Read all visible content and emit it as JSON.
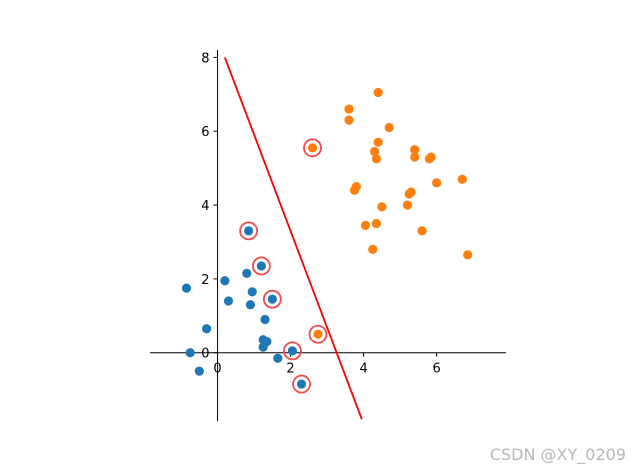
{
  "chart_data": {
    "type": "scatter",
    "title": "",
    "xlabel": "",
    "ylabel": "",
    "xlim": [
      -1.85,
      7.9
    ],
    "ylim": [
      -1.85,
      8.2
    ],
    "x_ticks": [
      0,
      2,
      4,
      6
    ],
    "y_ticks": [
      0,
      2,
      4,
      6,
      8
    ],
    "x_tick_labels": [
      "0",
      "2",
      "4",
      "6"
    ],
    "y_tick_labels": [
      "0",
      "2",
      "4",
      "6",
      "8"
    ],
    "grid": false,
    "spines": "centered at origin",
    "series": [
      {
        "color": "#1f77b4",
        "points": [
          [
            -0.85,
            1.75
          ],
          [
            0.2,
            1.95
          ],
          [
            0.3,
            1.4
          ],
          [
            0.8,
            2.15
          ],
          [
            0.85,
            3.3
          ],
          [
            0.95,
            1.65
          ],
          [
            0.9,
            1.3
          ],
          [
            1.2,
            2.35
          ],
          [
            1.5,
            1.45
          ],
          [
            1.3,
            0.9
          ],
          [
            1.25,
            0.35
          ],
          [
            1.35,
            0.3
          ],
          [
            1.25,
            0.15
          ],
          [
            1.65,
            -0.15
          ],
          [
            2.05,
            0.05
          ],
          [
            2.3,
            -0.85
          ],
          [
            -0.3,
            0.65
          ],
          [
            -0.75,
            0.0
          ],
          [
            -0.5,
            -0.5
          ]
        ]
      },
      {
        "color": "#ff7f0e",
        "points": [
          [
            2.6,
            5.55
          ],
          [
            3.6,
            6.6
          ],
          [
            3.6,
            6.3
          ],
          [
            4.4,
            7.05
          ],
          [
            4.7,
            6.1
          ],
          [
            4.4,
            5.7
          ],
          [
            4.3,
            5.45
          ],
          [
            4.35,
            5.25
          ],
          [
            3.8,
            4.5
          ],
          [
            3.75,
            4.4
          ],
          [
            4.05,
            3.45
          ],
          [
            4.35,
            3.5
          ],
          [
            4.5,
            3.95
          ],
          [
            4.25,
            2.8
          ],
          [
            5.4,
            5.5
          ],
          [
            5.4,
            5.3
          ],
          [
            5.8,
            5.25
          ],
          [
            5.85,
            5.3
          ],
          [
            5.25,
            4.3
          ],
          [
            5.3,
            4.35
          ],
          [
            5.2,
            4.0
          ],
          [
            5.6,
            3.3
          ],
          [
            6.0,
            4.6
          ],
          [
            6.7,
            4.7
          ],
          [
            6.85,
            2.65
          ],
          [
            2.75,
            0.5
          ]
        ]
      }
    ],
    "highlighted_points": [
      [
        2.6,
        5.55
      ],
      [
        0.85,
        3.3
      ],
      [
        1.2,
        2.35
      ],
      [
        1.5,
        1.45
      ],
      [
        2.75,
        0.5
      ],
      [
        2.05,
        0.05
      ],
      [
        2.3,
        -0.85
      ]
    ],
    "decision_line": {
      "color": "#ff0000",
      "points": [
        [
          0.2,
          8.0
        ],
        [
          3.95,
          -1.8
        ]
      ]
    }
  },
  "watermark": "CSDN @XY_0209"
}
